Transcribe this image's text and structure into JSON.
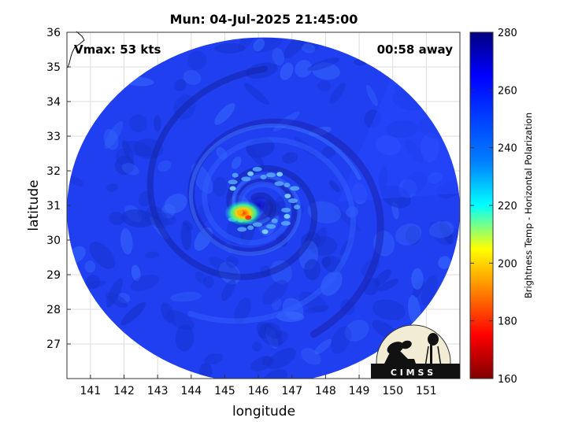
{
  "chart_data": {
    "type": "heatmap",
    "title": "Mun: 04-Jul-2025 21:45:00",
    "xlabel": "longitude",
    "ylabel": "latitude",
    "xlim": [
      140.3,
      152.0
    ],
    "ylim": [
      26.0,
      36.0
    ],
    "xticks": [
      141,
      142,
      143,
      144,
      145,
      146,
      147,
      148,
      149,
      150,
      151
    ],
    "yticks": [
      27,
      28,
      29,
      30,
      31,
      32,
      33,
      34,
      35,
      36
    ],
    "grid": true,
    "annotations": {
      "vmax": "Vmax: 53 kts",
      "away": "00:58 away"
    },
    "storm_center": {
      "lon": 146.0,
      "lat": 31.0
    },
    "swath": {
      "center_lon": 146.15,
      "center_lat": 30.85,
      "radius_lon": 5.85,
      "radius_lat": 5.0
    },
    "cold_core": [
      {
        "lon": 145.45,
        "lat": 30.8,
        "value": 205
      },
      {
        "lon": 145.7,
        "lat": 30.65,
        "value": 195
      }
    ],
    "colorbar": {
      "label": "Brightness Temp - Horizontal Polarization",
      "range": [
        160,
        280
      ],
      "ticks": [
        160,
        180,
        200,
        220,
        240,
        260,
        280
      ],
      "colormap": "jet"
    },
    "logo_text": "C I M S S"
  }
}
